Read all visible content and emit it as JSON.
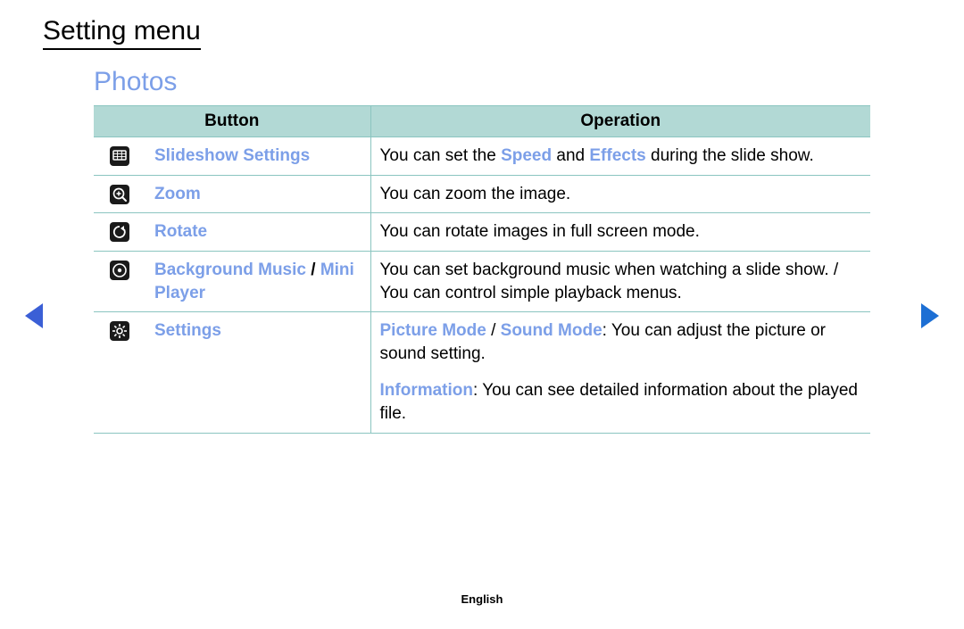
{
  "colors": {
    "accent_blue": "#7c9fe8",
    "header_bg": "#b2d9d5",
    "border": "#8bc5c0",
    "icon_bg": "#1a1a1a",
    "icon_fg": "#ffffff",
    "nav_left": "#3b5fd6",
    "nav_right": "#1d6fd4",
    "text": "#000000"
  },
  "page_title": "Setting menu",
  "section_title": "Photos",
  "table": {
    "headers": {
      "button": "Button",
      "operation": "Operation"
    },
    "rows": [
      {
        "icon": "slideshow-icon",
        "label_parts": [
          {
            "t": "Slideshow Settings",
            "hl": true
          }
        ],
        "op_parts": [
          {
            "t": "You can set the "
          },
          {
            "t": "Speed",
            "hl": true
          },
          {
            "t": " and "
          },
          {
            "t": "Effects",
            "hl": true
          },
          {
            "t": " during the slide show."
          }
        ]
      },
      {
        "icon": "zoom-icon",
        "label_parts": [
          {
            "t": "Zoom",
            "hl": true
          }
        ],
        "op_parts": [
          {
            "t": "You can zoom the image."
          }
        ]
      },
      {
        "icon": "rotate-icon",
        "label_parts": [
          {
            "t": "Rotate",
            "hl": true
          }
        ],
        "op_parts": [
          {
            "t": "You can rotate images in full screen mode."
          }
        ]
      },
      {
        "icon": "music-icon",
        "label_parts": [
          {
            "t": "Background Music",
            "hl": true
          },
          {
            "t": " / "
          },
          {
            "t": "Mini Player",
            "hl": true
          }
        ],
        "op_parts": [
          {
            "t": "You can set background music when watching a slide show. / You can control simple playback menus."
          }
        ]
      },
      {
        "icon": "settings-icon",
        "label_parts": [
          {
            "t": "Settings",
            "hl": true
          }
        ],
        "op_rows": [
          [
            {
              "t": "Picture Mode",
              "hl": true
            },
            {
              "t": " / "
            },
            {
              "t": "Sound Mode",
              "hl": true
            },
            {
              "t": ": You can adjust the picture or sound setting."
            }
          ],
          [
            {
              "t": "Information",
              "hl": true
            },
            {
              "t": ": You can see detailed information about the played file."
            }
          ]
        ]
      }
    ]
  },
  "footer_language": "English"
}
